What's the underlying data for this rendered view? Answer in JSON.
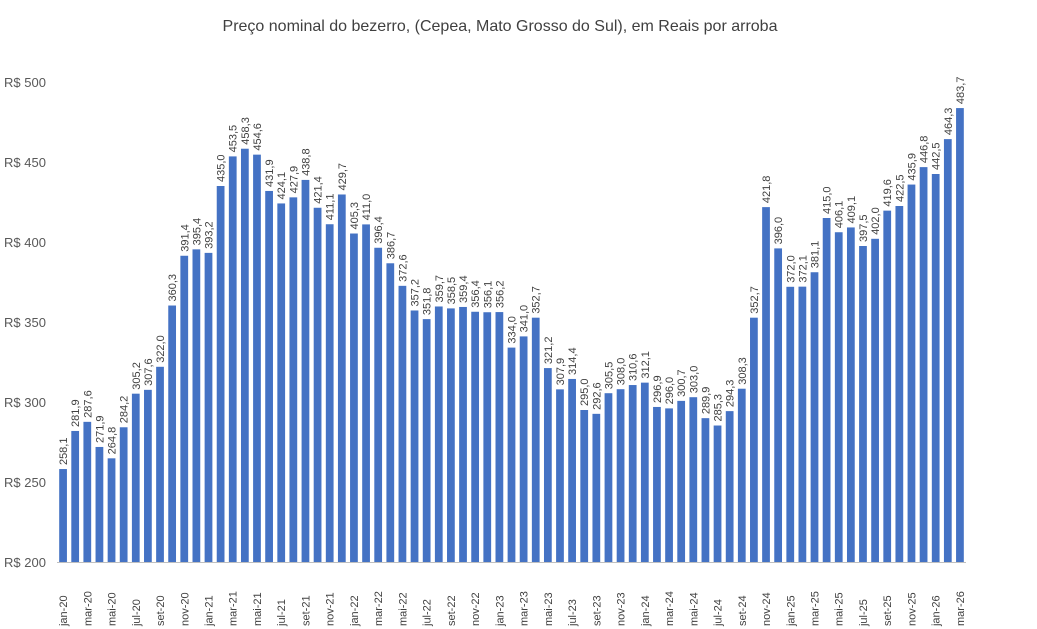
{
  "chart_data": {
    "type": "bar",
    "title": "Preço nominal do bezerro, (Cepea, Mato Grosso do Sul), em Reais por arroba",
    "xlabel": "",
    "ylabel": "",
    "ylim": [
      200,
      500
    ],
    "y_ticks": [
      200,
      250,
      300,
      350,
      400,
      450,
      500
    ],
    "y_tick_prefix": "R$ ",
    "bar_color": "#4472C4",
    "x_tick_labels": [
      "jan-20",
      "mar-20",
      "mai-20",
      "jul-20",
      "set-20",
      "nov-20",
      "jan-21",
      "mar-21",
      "mai-21",
      "jul-21",
      "set-21",
      "nov-21",
      "jan-22",
      "mar-22",
      "mai-22",
      "jul-22",
      "set-22",
      "nov-22",
      "jan-23",
      "mar-23",
      "mai-23",
      "jul-23",
      "set-23",
      "nov-23",
      "jan-24",
      "mar-24",
      "mai-24",
      "jul-24",
      "set-24",
      "nov-24",
      "jan-25",
      "mar-25",
      "mai-25",
      "jul-25",
      "set-25",
      "nov-25",
      "jan-26",
      "mar-26"
    ],
    "categories": [
      "jan-20",
      "fev-20",
      "mar-20",
      "abr-20",
      "mai-20",
      "jun-20",
      "jul-20",
      "ago-20",
      "set-20",
      "out-20",
      "nov-20",
      "dez-20",
      "jan-21",
      "fev-21",
      "mar-21",
      "abr-21",
      "mai-21",
      "jun-21",
      "jul-21",
      "ago-21",
      "set-21",
      "out-21",
      "nov-21",
      "dez-21",
      "jan-22",
      "fev-22",
      "mar-22",
      "abr-22",
      "mai-22",
      "jun-22",
      "jul-22",
      "ago-22",
      "set-22",
      "out-22",
      "nov-22",
      "dez-22",
      "jan-23",
      "fev-23",
      "mar-23",
      "abr-23",
      "mai-23",
      "jun-23",
      "jul-23",
      "ago-23",
      "set-23",
      "out-23",
      "nov-23",
      "dez-23",
      "jan-24",
      "fev-24",
      "mar-24",
      "abr-24",
      "mai-24",
      "jun-24",
      "jul-24",
      "ago-24",
      "set-24",
      "out-24",
      "nov-24",
      "dez-24",
      "jan-25",
      "fev-25",
      "mar-25",
      "abr-25",
      "mai-25",
      "jun-25",
      "jul-25",
      "ago-25",
      "set-25",
      "out-25",
      "nov-25",
      "dez-25",
      "jan-26",
      "fev-26",
      "mar-26"
    ],
    "values": [
      258.1,
      281.9,
      287.6,
      271.9,
      264.8,
      284.2,
      305.2,
      307.6,
      322.0,
      360.3,
      391.4,
      395.4,
      393.2,
      435.0,
      453.5,
      458.3,
      454.6,
      431.9,
      424.1,
      427.9,
      438.8,
      421.4,
      411.1,
      429.7,
      405.3,
      411.0,
      396.4,
      386.7,
      372.6,
      357.2,
      351.8,
      359.7,
      358.5,
      359.4,
      356.4,
      356.1,
      356.2,
      334.0,
      341.0,
      352.7,
      321.2,
      307.9,
      314.4,
      295.0,
      292.6,
      305.5,
      308.0,
      310.6,
      312.1,
      296.9,
      296.0,
      300.7,
      303.0,
      289.9,
      285.3,
      294.3,
      308.3,
      352.7,
      421.8,
      396.0,
      372.0,
      372.1,
      381.1,
      415.0,
      406.1,
      409.1,
      397.5,
      402.0,
      419.6,
      422.5,
      435.9,
      446.8,
      442.5,
      464.3,
      483.7
    ],
    "labels": [
      "258,1",
      "281,9",
      "287,6",
      "271,9",
      "264,8",
      "284,2",
      "305,2",
      "307,6",
      "322,0",
      "360,3",
      "391,4",
      "395,4",
      "393,2",
      "435,0",
      "453,5",
      "458,3",
      "454,6",
      "431,9",
      "424,1",
      "427,9",
      "438,8",
      "421,4",
      "411,1",
      "429,7",
      "405,3",
      "411,0",
      "396,4",
      "386,7",
      "372,6",
      "357,2",
      "351,8",
      "359,7",
      "358,5",
      "359,4",
      "356,4",
      "356,1",
      "356,2",
      "334,0",
      "341,0",
      "352,7",
      "321,2",
      "307,9",
      "314,4",
      "295,0",
      "292,6",
      "305,5",
      "308,0",
      "310,6",
      "312,1",
      "296,9",
      "296,0",
      "300,7",
      "303,0",
      "289,9",
      "285,3",
      "294,3",
      "308,3",
      "352,7",
      "421,8",
      "396,0",
      "372,0",
      "372,1",
      "381,1",
      "415,0",
      "406,1",
      "409,1",
      "397,5",
      "402,0",
      "419,6",
      "422,5",
      "435,9",
      "446,8",
      "442,5",
      "464,3",
      "483,7"
    ]
  }
}
